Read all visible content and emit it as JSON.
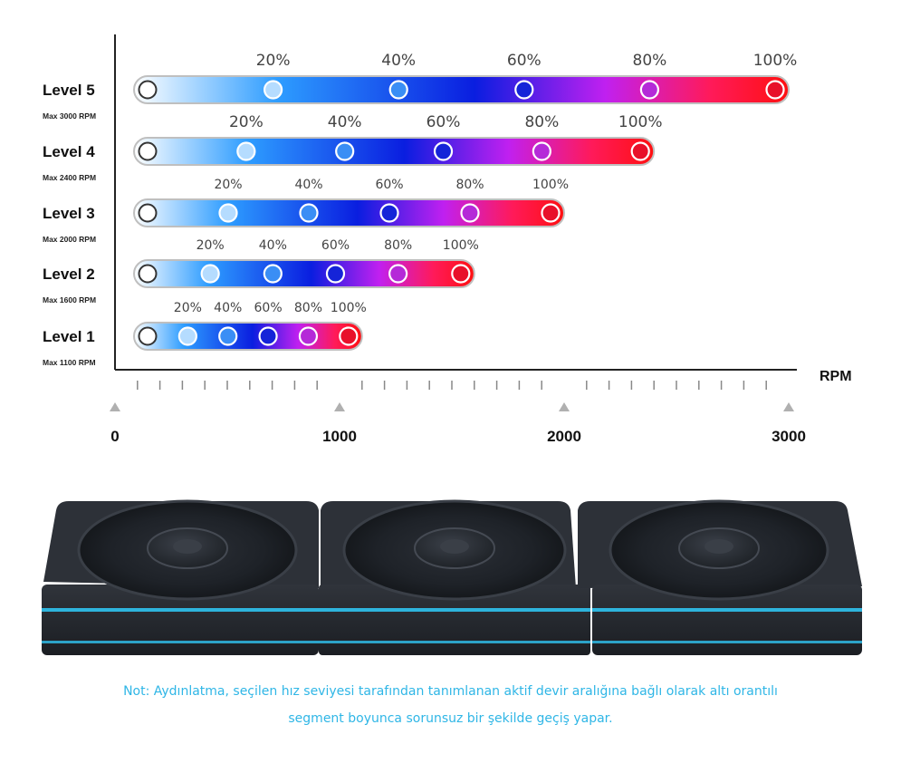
{
  "chart_data": {
    "type": "bar",
    "unit_label": "RPM",
    "xlim": [
      0,
      3000
    ],
    "axis_ticks": [
      "0",
      "1000",
      "2000",
      "3000"
    ],
    "axis_tick_values": [
      0,
      1000,
      2000,
      3000
    ],
    "series": [
      {
        "label": "Level 5",
        "sub": "Max 3000 RPM",
        "max_rpm": 3000
      },
      {
        "label": "Level 4",
        "sub": "Max 2400 RPM",
        "max_rpm": 2400
      },
      {
        "label": "Level 3",
        "sub": "Max 2000 RPM",
        "max_rpm": 2000
      },
      {
        "label": "Level 2",
        "sub": "Max 1600 RPM",
        "max_rpm": 1600
      },
      {
        "label": "Level 1",
        "sub": "Max 1100 RPM",
        "max_rpm": 1100
      }
    ],
    "marker_percents": [
      "20%",
      "40%",
      "60%",
      "80%",
      "100%"
    ],
    "marker_values": [
      20,
      40,
      60,
      80,
      100
    ],
    "gradient_colors": [
      "#ffffff",
      "#2d9cff",
      "#0a1ee0",
      "#c020f0",
      "#ff1a5a",
      "#ff1010"
    ]
  },
  "note": {
    "line1": "Not: Aydınlatma, seçilen hız seviyesi tarafından tanımlanan aktif devir aralığına bağlı olarak altı orantılı",
    "line2": "segment boyunca sorunsuz bir şekilde geçiş yapar."
  },
  "colors": {
    "note": "#2fb6e6",
    "fan_body": "#2a2e35",
    "led": "#2fc3f0"
  }
}
